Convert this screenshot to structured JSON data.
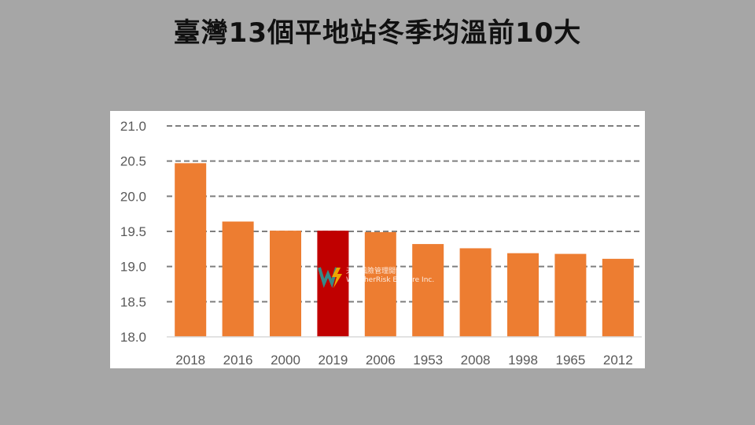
{
  "title": "臺灣13個平地站冬季均溫前10大",
  "watermark": {
    "line1": "天氣風險管理開發",
    "line2": "WeatherRisk Explore Inc."
  },
  "chart_data": {
    "type": "bar",
    "title": "臺灣13個平地站冬季均溫前10大",
    "xlabel": "",
    "ylabel": "",
    "categories": [
      "2018",
      "2016",
      "2000",
      "2019",
      "2006",
      "1953",
      "2008",
      "1998",
      "1965",
      "2012"
    ],
    "values": [
      20.47,
      19.64,
      19.51,
      19.51,
      19.49,
      19.32,
      19.26,
      19.19,
      19.18,
      19.11
    ],
    "highlight": "2019",
    "colors": {
      "bar": "#ed7d31",
      "highlight": "#c00000",
      "grid": "#7f7f7f",
      "background": "#a6a6a6"
    },
    "ylim": [
      18.0,
      21.0
    ],
    "yticks": [
      "18.0",
      "18.5",
      "19.0",
      "19.5",
      "20.0",
      "20.5",
      "21.0"
    ],
    "grid": "horizontal dashed",
    "legend": "none"
  }
}
